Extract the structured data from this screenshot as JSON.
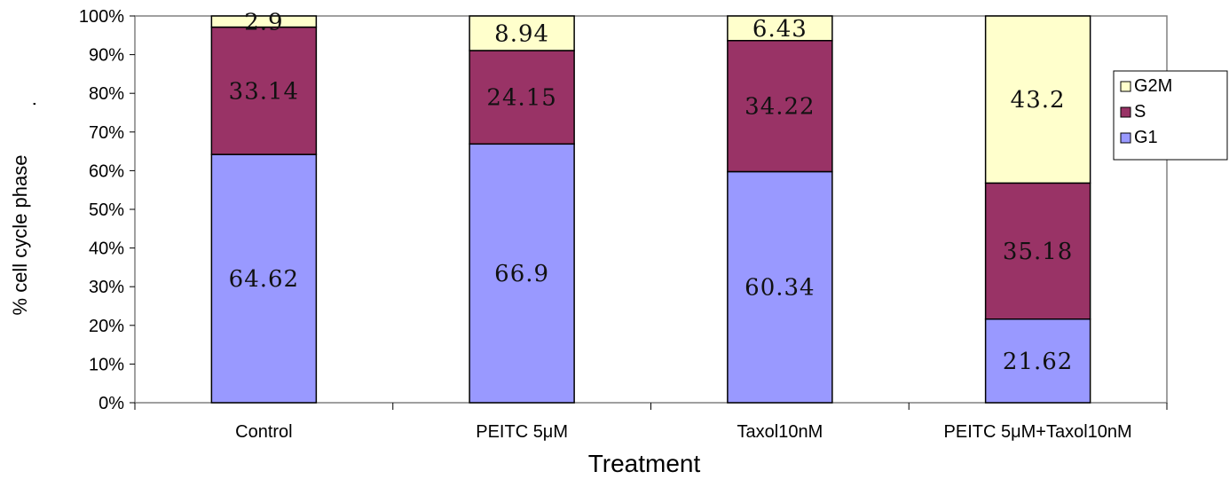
{
  "chart_data": {
    "type": "bar",
    "stacked": true,
    "percent": true,
    "categories": [
      "Control",
      "PEITC 5μM",
      "Taxol10nM",
      "PEITC 5μM+Taxol10nM"
    ],
    "series": [
      {
        "name": "G1",
        "values": [
          64.62,
          66.9,
          60.34,
          21.62
        ],
        "color": "#9999FF"
      },
      {
        "name": "S",
        "values": [
          33.14,
          24.15,
          34.22,
          35.18
        ],
        "color": "#993366"
      },
      {
        "name": "G2M",
        "values": [
          2.9,
          8.94,
          6.43,
          43.2
        ],
        "color": "#FFFFCC"
      }
    ],
    "data_labels": [
      [
        "64.62",
        "66.9",
        "60.34",
        "21.62"
      ],
      [
        "33.14",
        "24.15",
        "34.22",
        "35.18"
      ],
      [
        "2.9",
        "8.94",
        "6.43",
        "43.2"
      ]
    ],
    "title": "",
    "xlabel": "Treatment",
    "ylabel": "% cell cycle phase",
    "ylabel_suffix": ".",
    "ylim": [
      0,
      100
    ],
    "yticks": [
      "0%",
      "10%",
      "20%",
      "30%",
      "40%",
      "50%",
      "60%",
      "70%",
      "80%",
      "90%",
      "100%"
    ],
    "grid": false,
    "legend": {
      "position": "right",
      "order": [
        "G2M",
        "S",
        "G1"
      ]
    }
  }
}
